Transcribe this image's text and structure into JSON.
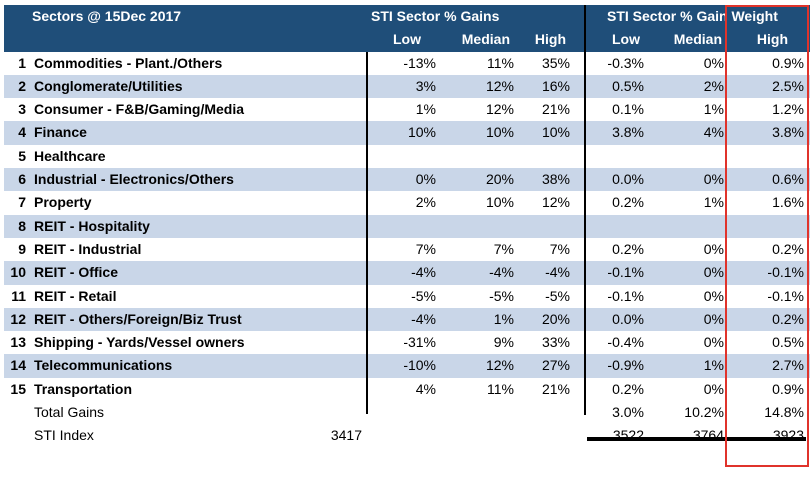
{
  "header": {
    "title": "Sectors @ 15Dec 2017",
    "group1": "STI Sector % Gains",
    "group2": "STI Sector % Gain Weight",
    "cols": [
      "Low",
      "Median",
      "High",
      "Low",
      "Median",
      "High"
    ]
  },
  "rows": [
    {
      "num": "1",
      "name": "Commodities - Plant./Others",
      "v": [
        "-13%",
        "11%",
        "35%",
        "-0.3%",
        "0%",
        "0.9%"
      ]
    },
    {
      "num": "2",
      "name": "Conglomerate/Utilities",
      "v": [
        "3%",
        "12%",
        "16%",
        "0.5%",
        "2%",
        "2.5%"
      ]
    },
    {
      "num": "3",
      "name": "Consumer - F&B/Gaming/Media",
      "v": [
        "1%",
        "12%",
        "21%",
        "0.1%",
        "1%",
        "1.2%"
      ]
    },
    {
      "num": "4",
      "name": "Finance",
      "v": [
        "10%",
        "10%",
        "10%",
        "3.8%",
        "4%",
        "3.8%"
      ]
    },
    {
      "num": "5",
      "name": "Healthcare",
      "v": [
        "",
        "",
        "",
        "",
        "",
        ""
      ]
    },
    {
      "num": "6",
      "name": "Industrial - Electronics/Others",
      "v": [
        "0%",
        "20%",
        "38%",
        "0.0%",
        "0%",
        "0.6%"
      ]
    },
    {
      "num": "7",
      "name": "Property",
      "v": [
        "2%",
        "10%",
        "12%",
        "0.2%",
        "1%",
        "1.6%"
      ]
    },
    {
      "num": "8",
      "name": "REIT - Hospitality",
      "v": [
        "",
        "",
        "",
        "",
        "",
        ""
      ]
    },
    {
      "num": "9",
      "name": "REIT - Industrial",
      "v": [
        "7%",
        "7%",
        "7%",
        "0.2%",
        "0%",
        "0.2%"
      ]
    },
    {
      "num": "10",
      "name": "REIT - Office",
      "v": [
        "-4%",
        "-4%",
        "-4%",
        "-0.1%",
        "0%",
        "-0.1%"
      ]
    },
    {
      "num": "11",
      "name": "REIT - Retail",
      "v": [
        "-5%",
        "-5%",
        "-5%",
        "-0.1%",
        "0%",
        "-0.1%"
      ]
    },
    {
      "num": "12",
      "name": "REIT - Others/Foreign/Biz Trust",
      "v": [
        "-4%",
        "1%",
        "20%",
        "0.0%",
        "0%",
        "0.2%"
      ]
    },
    {
      "num": "13",
      "name": "Shipping - Yards/Vessel owners",
      "v": [
        "-31%",
        "9%",
        "33%",
        "-0.4%",
        "0%",
        "0.5%"
      ]
    },
    {
      "num": "14",
      "name": "Telecommunications",
      "v": [
        "-10%",
        "12%",
        "27%",
        "-0.9%",
        "1%",
        "2.7%"
      ]
    },
    {
      "num": "15",
      "name": "Transportation",
      "v": [
        "4%",
        "11%",
        "21%",
        "0.2%",
        "0%",
        "0.9%"
      ]
    }
  ],
  "footer": {
    "total_label": "Total Gains",
    "total_values": [
      "3.0%",
      "10.2%",
      "14.8%"
    ],
    "index_label": "STI Index",
    "index_base": "3417",
    "index_values": [
      "3522",
      "3764",
      "3923"
    ]
  },
  "colors": {
    "header_bg": "#1f4e79",
    "stripe": "#c9d6e8",
    "highlight_box": "#e0332b"
  }
}
